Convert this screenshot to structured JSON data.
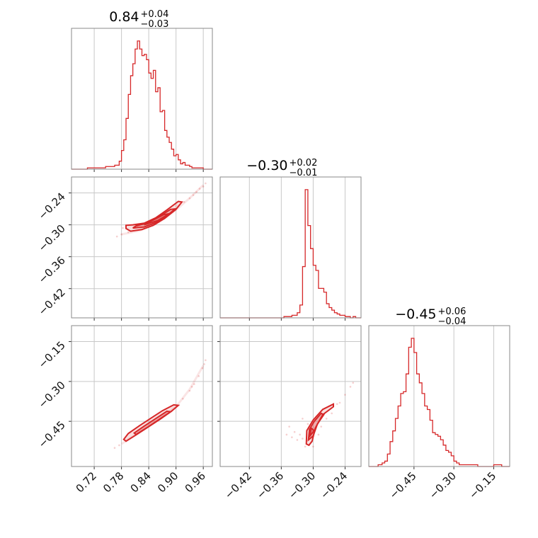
{
  "chart_data": {
    "type": "corner",
    "color": "#d62728",
    "parameters": [
      {
        "title": {
          "median": "0.84",
          "plus": "+0.04",
          "minus": "−0.03"
        },
        "range": [
          0.67,
          0.98
        ],
        "ticks": [
          0.72,
          0.78,
          0.84,
          0.9,
          0.96
        ],
        "tick_labels": [
          "0.72",
          "0.78",
          "0.84",
          "0.90",
          "0.96"
        ],
        "hist_x": [
          0.67,
          0.705,
          0.745,
          0.765,
          0.775,
          0.78,
          0.785,
          0.79,
          0.795,
          0.8,
          0.805,
          0.81,
          0.815,
          0.82,
          0.825,
          0.83,
          0.835,
          0.84,
          0.845,
          0.85,
          0.855,
          0.86,
          0.865,
          0.87,
          0.875,
          0.88,
          0.885,
          0.89,
          0.895,
          0.9,
          0.905,
          0.91,
          0.915,
          0.92,
          0.925,
          0.93,
          0.935,
          0.945,
          0.96,
          0.975
        ],
        "hist_y": [
          0,
          1,
          2,
          3,
          6,
          14,
          22,
          38,
          56,
          70,
          79,
          90,
          96,
          90,
          85,
          86,
          82,
          72,
          68,
          74,
          58,
          61,
          43,
          44,
          29,
          24,
          20,
          15,
          10,
          11,
          7,
          4,
          5,
          3,
          3,
          2,
          1,
          1,
          0,
          0
        ]
      },
      {
        "title": {
          "median": "−0.30",
          "plus": "+0.02",
          "minus": "−0.01"
        },
        "range": [
          -0.475,
          -0.21
        ],
        "ticks": [
          -0.42,
          -0.36,
          -0.3,
          -0.24
        ],
        "tick_labels": [
          "−0.42",
          "−0.36",
          "−0.30",
          "−0.24"
        ],
        "hist_x": [
          -0.475,
          -0.355,
          -0.34,
          -0.33,
          -0.325,
          -0.32,
          -0.315,
          -0.31,
          -0.305,
          -0.3,
          -0.295,
          -0.29,
          -0.285,
          -0.28,
          -0.275,
          -0.27,
          -0.265,
          -0.26,
          -0.255,
          -0.25,
          -0.245,
          -0.24,
          -0.235,
          -0.23,
          -0.225,
          -0.22
        ],
        "hist_y": [
          0,
          1,
          2,
          4,
          10,
          40,
          100,
          72,
          54,
          41,
          37,
          23,
          23,
          20,
          11,
          8,
          6,
          4,
          3,
          2,
          2,
          1,
          1,
          0,
          1,
          0
        ]
      },
      {
        "title": {
          "median": "−0.45",
          "plus": "+0.06",
          "minus": "−0.04"
        },
        "range": [
          -0.62,
          -0.09
        ],
        "ticks": [
          -0.45,
          -0.3,
          -0.15
        ],
        "tick_labels": [
          "−0.45",
          "−0.30",
          "−0.15"
        ],
        "hist_x": [
          -0.62,
          -0.585,
          -0.57,
          -0.56,
          -0.55,
          -0.54,
          -0.53,
          -0.52,
          -0.51,
          -0.5,
          -0.49,
          -0.48,
          -0.47,
          -0.46,
          -0.45,
          -0.44,
          -0.43,
          -0.42,
          -0.41,
          -0.4,
          -0.39,
          -0.38,
          -0.37,
          -0.36,
          -0.35,
          -0.34,
          -0.33,
          -0.32,
          -0.31,
          -0.3,
          -0.29,
          -0.28,
          -0.265,
          -0.24,
          -0.21,
          -0.18,
          -0.15,
          -0.12
        ],
        "hist_y": [
          0,
          1,
          2,
          3,
          7,
          14,
          20,
          27,
          34,
          41,
          42,
          52,
          67,
          72,
          64,
          52,
          47,
          41,
          34,
          32,
          26,
          19,
          18,
          17,
          15,
          12,
          9,
          8,
          6,
          3,
          2,
          1,
          1,
          1,
          0,
          0,
          1,
          0
        ]
      }
    ],
    "pairs": [
      {
        "row": 1,
        "col": 0,
        "contours": [
          [
            [
              0.79,
              -0.307
            ],
            [
              0.8,
              -0.312
            ],
            [
              0.825,
              -0.309
            ],
            [
              0.85,
              -0.301
            ],
            [
              0.875,
              -0.288
            ],
            [
              0.9,
              -0.271
            ],
            [
              0.913,
              -0.257
            ],
            [
              0.905,
              -0.256
            ],
            [
              0.88,
              -0.272
            ],
            [
              0.855,
              -0.287
            ],
            [
              0.83,
              -0.297
            ],
            [
              0.805,
              -0.3
            ],
            [
              0.79,
              -0.301
            ],
            [
              0.79,
              -0.307
            ]
          ],
          [
            [
              0.805,
              -0.306
            ],
            [
              0.83,
              -0.304
            ],
            [
              0.855,
              -0.296
            ],
            [
              0.88,
              -0.283
            ],
            [
              0.898,
              -0.27
            ],
            [
              0.888,
              -0.271
            ],
            [
              0.862,
              -0.285
            ],
            [
              0.835,
              -0.297
            ],
            [
              0.812,
              -0.302
            ],
            [
              0.805,
              -0.306
            ]
          ],
          [
            [
              0.83,
              -0.3
            ],
            [
              0.86,
              -0.292
            ],
            [
              0.885,
              -0.279
            ],
            [
              0.872,
              -0.281
            ],
            [
              0.845,
              -0.293
            ],
            [
              0.83,
              -0.3
            ]
          ]
        ],
        "curve": [
          [
            0.78,
            -0.318
          ],
          [
            0.82,
            -0.311
          ],
          [
            0.86,
            -0.295
          ],
          [
            0.9,
            -0.272
          ],
          [
            0.93,
            -0.25
          ],
          [
            0.96,
            -0.225
          ]
        ],
        "points": [
          [
            0.952,
            -0.232
          ],
          [
            0.96,
            -0.228
          ],
          [
            0.945,
            -0.238
          ],
          [
            0.93,
            -0.25
          ],
          [
            0.918,
            -0.257
          ],
          [
            0.905,
            -0.265
          ],
          [
            0.78,
            -0.318
          ],
          [
            0.77,
            -0.322
          ],
          [
            0.783,
            -0.306
          ],
          [
            0.795,
            -0.314
          ],
          [
            0.938,
            -0.244
          ],
          [
            0.965,
            -0.222
          ]
        ]
      },
      {
        "row": 2,
        "col": 0,
        "contours": [
          [
            [
              0.79,
              -0.525
            ],
            [
              0.815,
              -0.498
            ],
            [
              0.84,
              -0.47
            ],
            [
              0.865,
              -0.442
            ],
            [
              0.89,
              -0.412
            ],
            [
              0.905,
              -0.39
            ],
            [
              0.895,
              -0.388
            ],
            [
              0.87,
              -0.41
            ],
            [
              0.845,
              -0.438
            ],
            [
              0.82,
              -0.466
            ],
            [
              0.795,
              -0.496
            ],
            [
              0.785,
              -0.518
            ],
            [
              0.79,
              -0.525
            ]
          ],
          [
            [
              0.812,
              -0.5
            ],
            [
              0.838,
              -0.472
            ],
            [
              0.862,
              -0.444
            ],
            [
              0.888,
              -0.414
            ],
            [
              0.88,
              -0.412
            ],
            [
              0.855,
              -0.44
            ],
            [
              0.83,
              -0.468
            ],
            [
              0.808,
              -0.494
            ],
            [
              0.812,
              -0.5
            ]
          ]
        ],
        "curve": [
          [
            0.78,
            -0.535
          ],
          [
            0.82,
            -0.49
          ],
          [
            0.86,
            -0.445
          ],
          [
            0.9,
            -0.395
          ],
          [
            0.93,
            -0.33
          ],
          [
            0.96,
            -0.24
          ]
        ],
        "points": [
          [
            0.94,
            -0.31
          ],
          [
            0.95,
            -0.28
          ],
          [
            0.958,
            -0.25
          ],
          [
            0.965,
            -0.22
          ],
          [
            0.93,
            -0.335
          ],
          [
            0.915,
            -0.365
          ],
          [
            0.775,
            -0.54
          ],
          [
            0.765,
            -0.55
          ],
          [
            0.935,
            -0.32
          ],
          [
            0.962,
            -0.235
          ]
        ]
      },
      {
        "row": 2,
        "col": 1,
        "contours": [
          [
            [
              -0.313,
              -0.535
            ],
            [
              -0.312,
              -0.485
            ],
            [
              -0.3,
              -0.445
            ],
            [
              -0.282,
              -0.405
            ],
            [
              -0.262,
              -0.385
            ],
            [
              -0.262,
              -0.395
            ],
            [
              -0.282,
              -0.425
            ],
            [
              -0.296,
              -0.475
            ],
            [
              -0.302,
              -0.525
            ],
            [
              -0.308,
              -0.54
            ],
            [
              -0.313,
              -0.535
            ]
          ],
          [
            [
              -0.309,
              -0.52
            ],
            [
              -0.307,
              -0.48
            ],
            [
              -0.298,
              -0.45
            ],
            [
              -0.285,
              -0.42
            ],
            [
              -0.28,
              -0.425
            ],
            [
              -0.292,
              -0.46
            ],
            [
              -0.3,
              -0.505
            ],
            [
              -0.309,
              -0.52
            ]
          ],
          [
            [
              -0.306,
              -0.505
            ],
            [
              -0.304,
              -0.475
            ],
            [
              -0.298,
              -0.485
            ],
            [
              -0.306,
              -0.505
            ]
          ]
        ],
        "curve": [],
        "points": [
          [
            -0.32,
            -0.515
          ],
          [
            -0.325,
            -0.5
          ],
          [
            -0.33,
            -0.52
          ],
          [
            -0.315,
            -0.545
          ],
          [
            -0.3,
            -0.545
          ],
          [
            -0.29,
            -0.5
          ],
          [
            -0.335,
            -0.49
          ],
          [
            -0.34,
            -0.51
          ],
          [
            -0.255,
            -0.385
          ],
          [
            -0.25,
            -0.38
          ],
          [
            -0.24,
            -0.35
          ],
          [
            -0.23,
            -0.32
          ],
          [
            -0.225,
            -0.305
          ],
          [
            -0.35,
            -0.5
          ],
          [
            -0.345,
            -0.47
          ],
          [
            -0.31,
            -0.46
          ],
          [
            -0.275,
            -0.44
          ],
          [
            -0.265,
            -0.42
          ],
          [
            -0.32,
            -0.44
          ],
          [
            -0.285,
            -0.47
          ]
        ]
      }
    ]
  }
}
